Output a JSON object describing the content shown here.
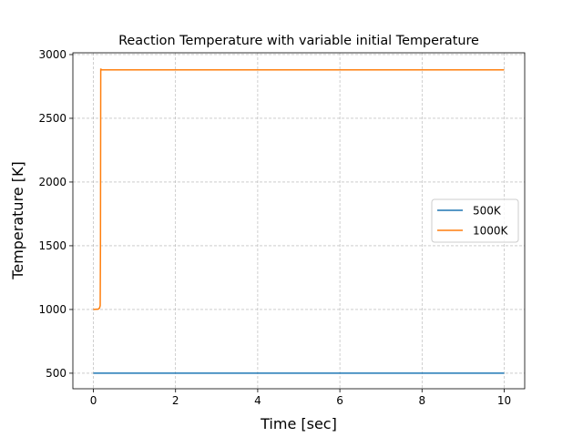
{
  "chart_data": {
    "type": "line",
    "title": "Reaction Temperature with variable initial Temperature",
    "xlabel": "Time [sec]",
    "ylabel": "Temperature [K]",
    "xlim": [
      -0.5,
      10.5
    ],
    "ylim": [
      378,
      3014
    ],
    "xticks": [
      0,
      2,
      4,
      6,
      8,
      10
    ],
    "yticks": [
      500,
      1000,
      1500,
      2000,
      2500,
      3000
    ],
    "grid": true,
    "legend": "center-right",
    "series": [
      {
        "name": "500K",
        "color": "#1f77b4",
        "x": [
          0,
          10
        ],
        "y": [
          500,
          500
        ]
      },
      {
        "name": "1000K",
        "color": "#ff7f0e",
        "x": [
          0,
          0.12,
          0.15,
          0.165,
          0.172,
          0.178,
          0.185,
          0.2,
          10
        ],
        "y": [
          1000,
          1003,
          1012,
          1030,
          1500,
          2890,
          2884,
          2880,
          2880
        ]
      }
    ]
  }
}
